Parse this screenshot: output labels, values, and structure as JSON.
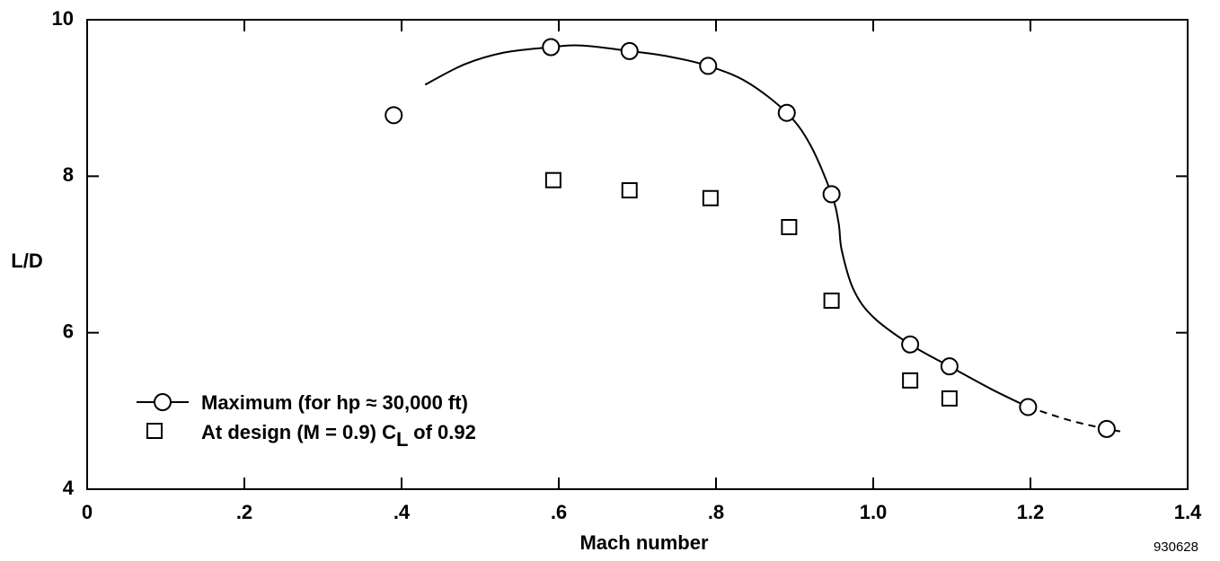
{
  "chart_data": {
    "type": "scatter",
    "xlabel": "Mach number",
    "ylabel": "L/D",
    "xlim": [
      0,
      1.4
    ],
    "ylim": [
      4,
      10
    ],
    "x_ticks": [
      0,
      0.2,
      0.4,
      0.6,
      0.8,
      1.0,
      1.2,
      1.4
    ],
    "x_tick_labels": [
      "0",
      ".2",
      ".4",
      ".6",
      ".8",
      "1.0",
      "1.2",
      "1.4"
    ],
    "y_ticks": [
      4,
      6,
      8,
      10
    ],
    "y_tick_labels": [
      "4",
      "6",
      "8",
      "10"
    ],
    "grid": false,
    "legend_position": "bottom-left",
    "series": [
      {
        "name": "Maximum (for hp ≈ 30,000 ft)",
        "marker": "circle",
        "points": [
          [
            0.39,
            8.78
          ],
          [
            0.59,
            9.65
          ],
          [
            0.69,
            9.6
          ],
          [
            0.79,
            9.41
          ],
          [
            0.89,
            8.81
          ],
          [
            0.947,
            7.77
          ],
          [
            1.047,
            5.85
          ],
          [
            1.097,
            5.57
          ],
          [
            1.197,
            5.05
          ],
          [
            1.297,
            4.77
          ]
        ],
        "curve": [
          [
            0.43,
            9.17
          ],
          [
            0.48,
            9.43
          ],
          [
            0.53,
            9.58
          ],
          [
            0.59,
            9.65
          ],
          [
            0.63,
            9.67
          ],
          [
            0.69,
            9.6
          ],
          [
            0.74,
            9.53
          ],
          [
            0.79,
            9.41
          ],
          [
            0.84,
            9.2
          ],
          [
            0.89,
            8.81
          ],
          [
            0.92,
            8.4
          ],
          [
            0.947,
            7.77
          ],
          [
            0.956,
            7.4
          ],
          [
            0.96,
            7.05
          ],
          [
            0.975,
            6.55
          ],
          [
            1.0,
            6.2
          ],
          [
            1.047,
            5.85
          ],
          [
            1.097,
            5.57
          ],
          [
            1.15,
            5.28
          ],
          [
            1.197,
            5.05
          ]
        ],
        "curve_extrapolated": [
          [
            1.197,
            5.05
          ],
          [
            1.25,
            4.88
          ],
          [
            1.297,
            4.77
          ],
          [
            1.32,
            4.73
          ]
        ]
      },
      {
        "name_prefix": "At design (M = 0.9) C",
        "name_subscript": "L",
        "name_suffix": " of 0.92",
        "marker": "square",
        "points": [
          [
            0.593,
            7.95
          ],
          [
            0.69,
            7.82
          ],
          [
            0.793,
            7.72
          ],
          [
            0.893,
            7.35
          ],
          [
            0.947,
            6.41
          ],
          [
            1.047,
            5.39
          ],
          [
            1.097,
            5.16
          ]
        ]
      }
    ],
    "figure_id": "930628"
  }
}
